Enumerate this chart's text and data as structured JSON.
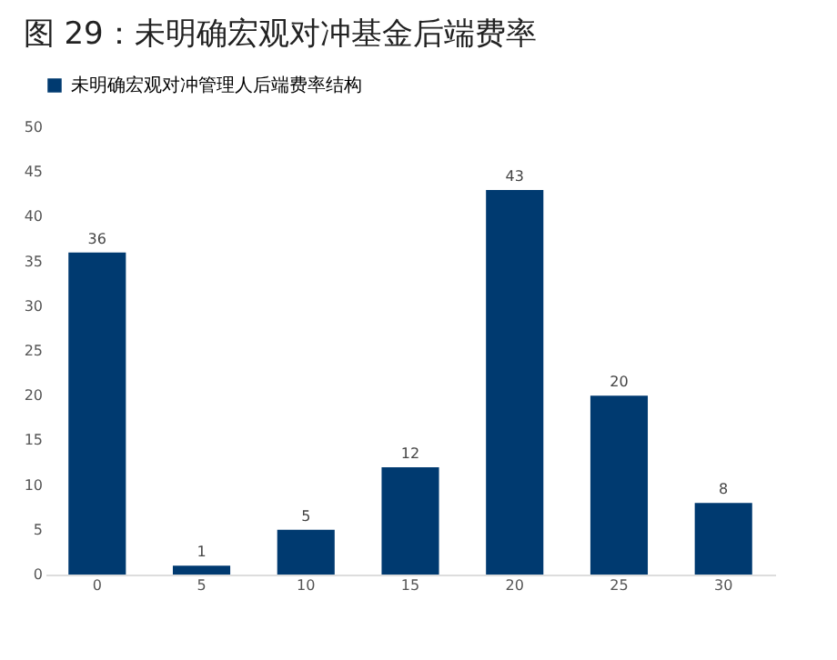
{
  "chart_data": {
    "type": "bar",
    "title": "图 29：未明确宏观对冲基金后端费率",
    "categories": [
      "0",
      "5",
      "10",
      "15",
      "20",
      "25",
      "30"
    ],
    "series": [
      {
        "name": "未明确宏观对冲管理人后端费率结构",
        "color": "#003a70",
        "values": [
          36,
          1,
          5,
          12,
          43,
          20,
          8
        ]
      }
    ],
    "ylim": [
      0,
      50
    ],
    "yticks": [
      0,
      5,
      10,
      15,
      20,
      25,
      30,
      35,
      40,
      45,
      50
    ],
    "data_labels": true,
    "grid": false,
    "legend": "top"
  }
}
